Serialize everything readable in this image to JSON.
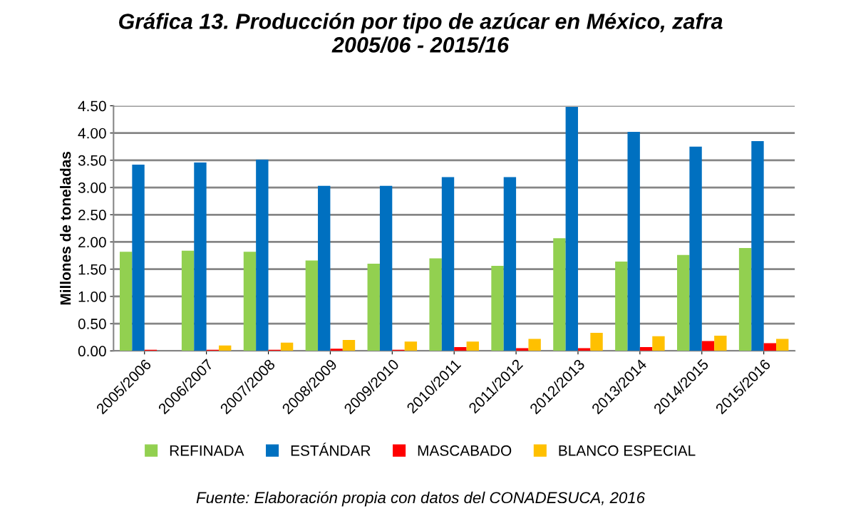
{
  "chart_data": {
    "type": "bar",
    "title": "Gráfica 13. Producción por tipo de azúcar en México, zafra\n2005/06 - 2015/16",
    "ylabel": "Millones de toneladas",
    "categories": [
      "2005/2006",
      "2006/2007",
      "2007/2008",
      "2008/2009",
      "2009/2010",
      "2010/2011",
      "2011/2012",
      "2012/2013",
      "2013/2014",
      "2014/2015",
      "2015/2016"
    ],
    "series": [
      {
        "name": "REFINADA",
        "color": "#92d050",
        "values": [
          1.82,
          1.84,
          1.82,
          1.66,
          1.6,
          1.7,
          1.56,
          2.07,
          1.64,
          1.76,
          1.89
        ]
      },
      {
        "name": "ESTÁNDAR",
        "color": "#0070c0",
        "values": [
          3.42,
          3.46,
          3.51,
          3.03,
          3.03,
          3.19,
          3.19,
          4.48,
          4.02,
          3.75,
          3.85
        ]
      },
      {
        "name": "MASCABADO",
        "color": "#ff0000",
        "values": [
          0.02,
          0.02,
          0.02,
          0.04,
          0.02,
          0.07,
          0.05,
          0.05,
          0.07,
          0.18,
          0.14
        ]
      },
      {
        "name": "BLANCO ESPECIAL",
        "color": "#ffc000",
        "values": [
          0.0,
          0.1,
          0.15,
          0.2,
          0.17,
          0.17,
          0.22,
          0.33,
          0.27,
          0.28,
          0.22
        ]
      }
    ],
    "ylim": [
      0,
      4.5
    ],
    "yticks": [
      {
        "value": 0,
        "label": "0.00"
      },
      {
        "value": 0.5,
        "label": "0.50"
      },
      {
        "value": 1,
        "label": "1.00"
      },
      {
        "value": 1.5,
        "label": "1.50"
      },
      {
        "value": 2,
        "label": "2.00"
      },
      {
        "value": 2.5,
        "label": "2.50"
      },
      {
        "value": 3,
        "label": "3.00"
      },
      {
        "value": 3.5,
        "label": "3.50"
      },
      {
        "value": 4,
        "label": "4.00"
      },
      {
        "value": 4.5,
        "label": "4.50"
      }
    ],
    "grid": "y",
    "legend": "bottom",
    "annotations": [
      "Fuente: Elaboración propia con datos del CONADESUCA, 2016"
    ]
  }
}
